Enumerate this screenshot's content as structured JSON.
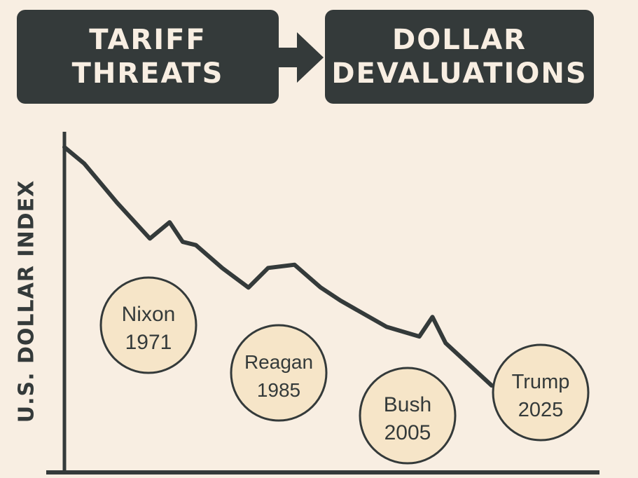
{
  "header": {
    "left_box": [
      "TARIFF",
      "THREATS"
    ],
    "right_box": [
      "DOLLAR",
      "DEVALUATIONS"
    ]
  },
  "colors": {
    "background": "#f8eee2",
    "dark": "#343a3a",
    "circle_fill": "#f6e5c8"
  },
  "chart_data": {
    "type": "line",
    "title": "",
    "xlabel": "",
    "ylabel": "U.S. DOLLAR INDEX",
    "grid": false,
    "series": [
      {
        "name": "U.S. Dollar Index",
        "x": [
          0,
          3,
          8,
          13,
          16,
          18,
          20,
          24,
          28,
          31,
          35,
          39,
          42,
          49,
          54,
          56,
          58,
          65
        ],
        "values": [
          100,
          95,
          83,
          72,
          77,
          71,
          70,
          63,
          57,
          63,
          64,
          57,
          53,
          45,
          42,
          48,
          40,
          27
        ]
      }
    ],
    "annotations": [
      {
        "label": "Nixon",
        "year": "1971"
      },
      {
        "label": "Reagan",
        "year": "1985"
      },
      {
        "label": "Bush",
        "year": "2005"
      },
      {
        "label": "Trump",
        "year": "2025"
      }
    ]
  }
}
